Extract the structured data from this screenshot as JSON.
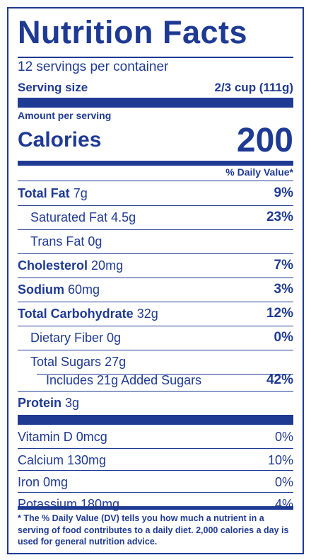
{
  "title": "Nutrition Facts",
  "servings_per_container": "12 servings per container",
  "serving_size_label": "Serving size",
  "serving_size_value": "2/3 cup (111g)",
  "amount_per_serving": "Amount per serving",
  "calories_label": "Calories",
  "calories_value": "200",
  "daily_value_header": "% Daily Value*",
  "nutrients": [
    {
      "name": "Total Fat",
      "amount": "7g",
      "dv": "9%"
    },
    {
      "name": "Saturated Fat",
      "amount": "4.5g",
      "dv": "23%"
    },
    {
      "name": "Trans Fat",
      "amount": "0g",
      "dv": ""
    },
    {
      "name": "Cholesterol",
      "amount": "20mg",
      "dv": "7%"
    },
    {
      "name": "Sodium",
      "amount": "60mg",
      "dv": "3%"
    },
    {
      "name": "Total Carbohydrate",
      "amount": "32g",
      "dv": "12%"
    },
    {
      "name": "Dietary Fiber",
      "amount": "0g",
      "dv": "0%"
    },
    {
      "name": "Total Sugars",
      "amount": "27g",
      "dv": ""
    },
    {
      "name": "Includes 21g Added Sugars",
      "amount": "",
      "dv": "42%"
    },
    {
      "name": "Protein",
      "amount": "3g",
      "dv": ""
    }
  ],
  "vitamins": [
    {
      "name": "Vitamin D 0mcg",
      "dv": "0%"
    },
    {
      "name": "Calcium 130mg",
      "dv": "10%"
    },
    {
      "name": "Iron 0mg",
      "dv": "0%"
    },
    {
      "name": "Potassium 180mg",
      "dv": "4%"
    }
  ],
  "footnote": "* The % Daily Value (DV) tells you how much a nutrient in a serving of food contributes to a daily diet. 2,000 calories a day is used for general nutrition advice.",
  "colors": {
    "ink": "#1f3a93",
    "background": "#ffffff"
  }
}
